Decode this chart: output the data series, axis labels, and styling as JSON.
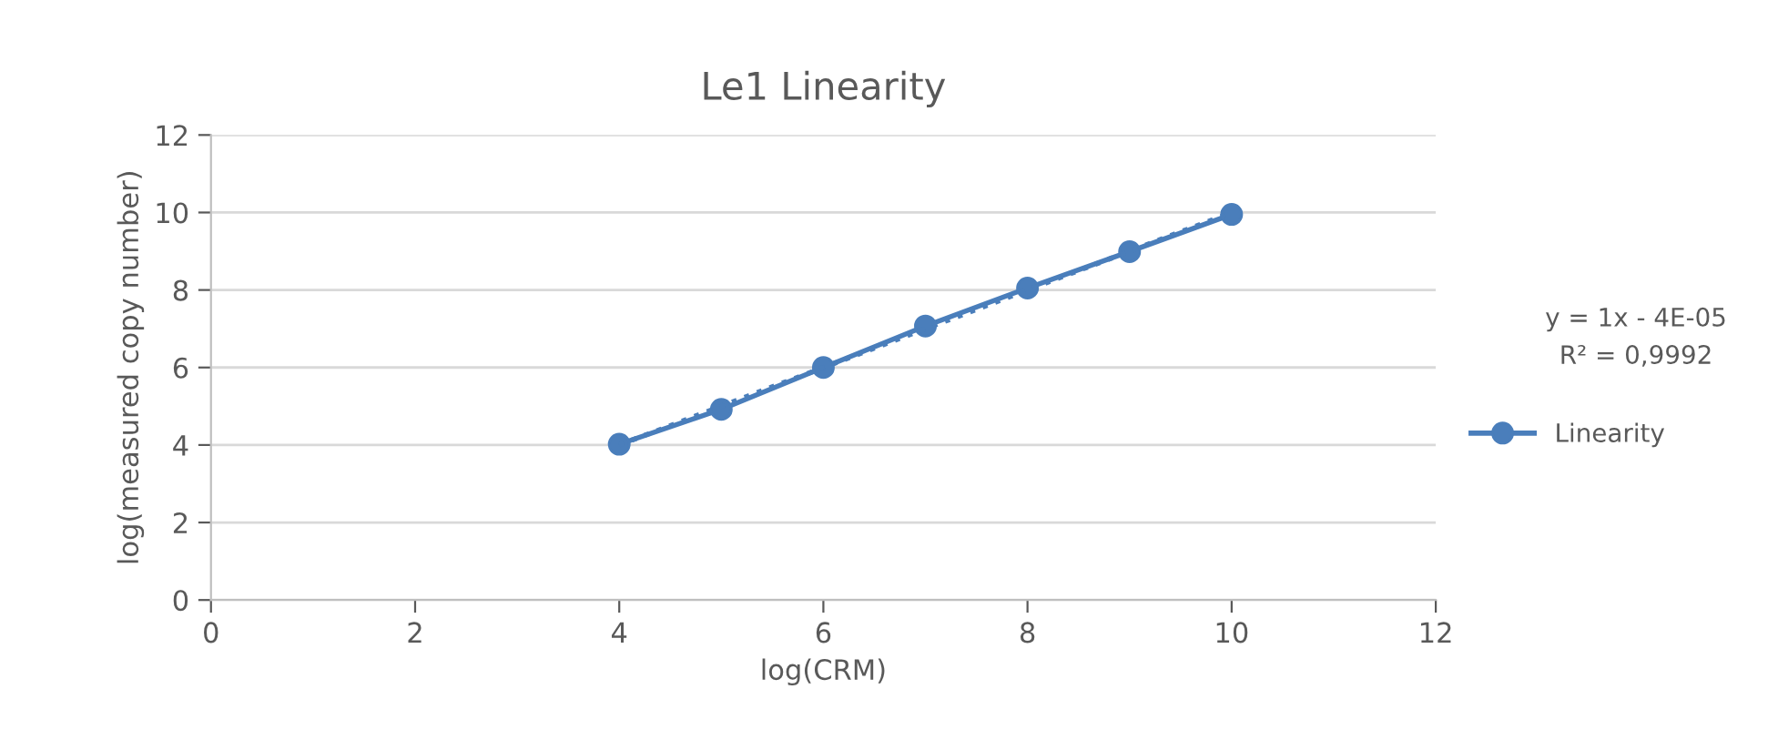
{
  "chart_data": {
    "type": "line",
    "title": "Le1 Linearity",
    "xlabel": "log(CRM)",
    "ylabel": "log(measured copy number)",
    "x": [
      4,
      5,
      6,
      7,
      8,
      9,
      10
    ],
    "series": [
      {
        "name": "Linearity",
        "color": "#4a7ebb",
        "values": [
          4.02,
          4.92,
          6.0,
          7.07,
          8.05,
          8.99,
          9.95
        ],
        "marker": "circle",
        "line_style": "solid"
      },
      {
        "type": "line",
        "color": "#4a7ebb",
        "x": [
          4,
          10
        ],
        "values": [
          4.0,
          10.0
        ],
        "marker": "none",
        "line_style": "dotted"
      }
    ],
    "annotations": [
      "y = 1x - 4E-05",
      "R² = 0,9992"
    ],
    "xlim": [
      0,
      12
    ],
    "xticks": [
      0,
      2,
      4,
      6,
      8,
      10,
      12
    ],
    "ylim": [
      0,
      12
    ],
    "yticks": [
      0,
      2,
      4,
      6,
      8,
      10,
      12
    ],
    "grid": "y",
    "legend": "right"
  }
}
